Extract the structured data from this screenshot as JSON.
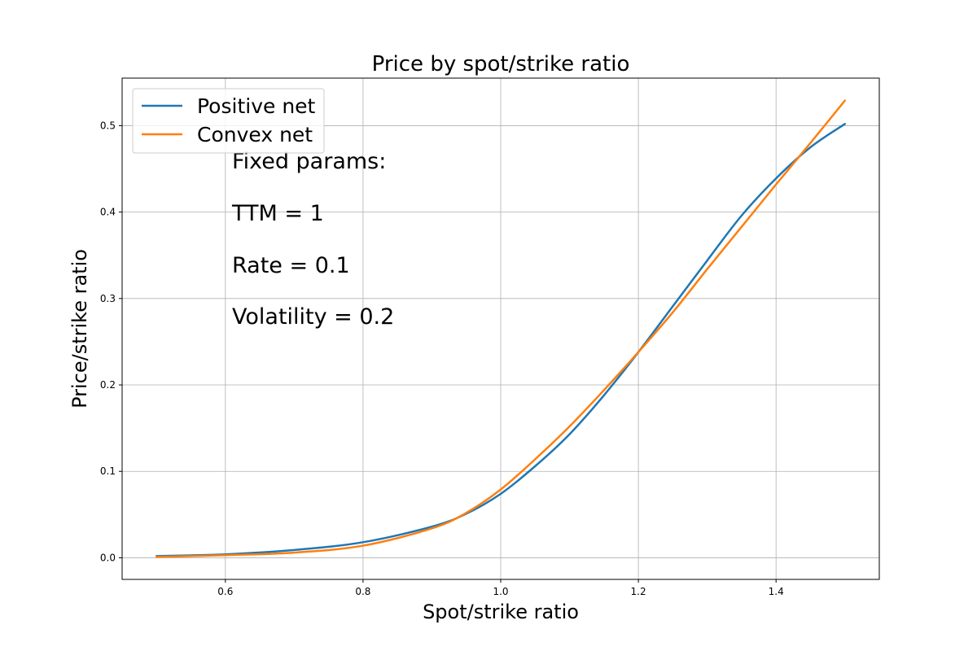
{
  "chart_data": {
    "type": "line",
    "title": "Price by spot/strike ratio",
    "xlabel": "Spot/strike ratio",
    "ylabel": "Price/strike ratio",
    "xlim": [
      0.45,
      1.55
    ],
    "ylim": [
      -0.025,
      0.555
    ],
    "xticks": [
      0.6,
      0.8,
      1.0,
      1.2,
      1.4
    ],
    "xtick_labels": [
      "0.6",
      "0.8",
      "1.0",
      "1.2",
      "1.4"
    ],
    "yticks": [
      0.0,
      0.1,
      0.2,
      0.3,
      0.4,
      0.5
    ],
    "ytick_labels": [
      "0.0",
      "0.1",
      "0.2",
      "0.3",
      "0.4",
      "0.5"
    ],
    "grid": true,
    "legend_position": "top-left",
    "x": [
      0.5,
      0.6,
      0.7,
      0.8,
      0.9,
      0.95,
      1.0,
      1.05,
      1.1,
      1.15,
      1.2,
      1.25,
      1.3,
      1.35,
      1.4,
      1.45,
      1.5
    ],
    "series": [
      {
        "name": "Positive net",
        "color": "#1f77b4",
        "values": [
          0.002,
          0.004,
          0.009,
          0.018,
          0.036,
          0.051,
          0.074,
          0.106,
          0.143,
          0.188,
          0.238,
          0.291,
          0.344,
          0.396,
          0.439,
          0.475,
          0.502
        ]
      },
      {
        "name": "Convex net",
        "color": "#ff7f0e",
        "values": [
          0.001,
          0.003,
          0.006,
          0.014,
          0.034,
          0.052,
          0.079,
          0.114,
          0.152,
          0.194,
          0.238,
          0.284,
          0.334,
          0.383,
          0.432,
          0.48,
          0.529
        ]
      }
    ],
    "annotation_lines": [
      "Fixed params:",
      "TTM = 1",
      "Rate = 0.1",
      "Volatility = 0.2"
    ]
  }
}
